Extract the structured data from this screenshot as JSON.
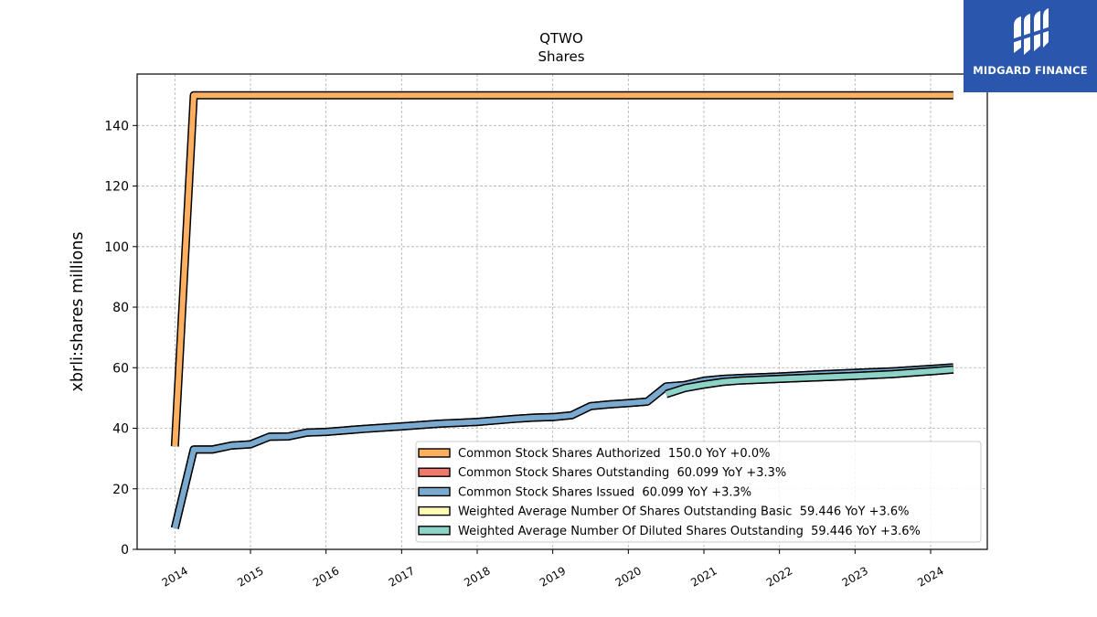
{
  "logo": {
    "brand": "MIDGARD FINANCE",
    "icon": "midgard-logo-icon",
    "bg": "#2a57ad"
  },
  "chart_data": {
    "type": "line",
    "title": "QTWO",
    "subtitle": "Shares",
    "ylabel": "xbrli:shares millions",
    "xlabel": "",
    "xlim": [
      2013.5,
      2024.75
    ],
    "ylim": [
      0,
      157
    ],
    "yticks": [
      0,
      20,
      40,
      60,
      80,
      100,
      120,
      140
    ],
    "xticks": [
      2014,
      2015,
      2016,
      2017,
      2018,
      2019,
      2020,
      2021,
      2022,
      2023,
      2024
    ],
    "grid": true,
    "legend_position": "lower-right",
    "series": [
      {
        "name": "Common Stock Shares Authorized",
        "legend_label": "Common Stock Shares Authorized  150.0 YoY +0.0%",
        "color": "#fcb060",
        "x": [
          2014.0,
          2014.25,
          2014.5,
          2015.0,
          2016.0,
          2017.0,
          2018.0,
          2019.0,
          2020.0,
          2021.0,
          2022.0,
          2023.0,
          2024.3
        ],
        "y": [
          34,
          150,
          150,
          150,
          150,
          150,
          150,
          150,
          150,
          150,
          150,
          150,
          150
        ]
      },
      {
        "name": "Common Stock Shares Outstanding",
        "legend_label": "Common Stock Shares Outstanding  60.099 YoY +3.3%",
        "color": "#f0786c",
        "x": [
          2014.0,
          2014.25,
          2014.5,
          2014.75,
          2015.0,
          2015.25,
          2015.5,
          2015.75,
          2016.0,
          2016.5,
          2017.0,
          2017.5,
          2018.0,
          2018.5,
          2018.75,
          2019.0,
          2019.25,
          2019.5,
          2019.75,
          2020.0,
          2020.25,
          2020.5,
          2020.75,
          2021.0,
          2021.25,
          2021.5,
          2022.0,
          2022.5,
          2023.0,
          2023.5,
          2024.0,
          2024.3
        ],
        "y": [
          7,
          33,
          33,
          34.3,
          34.7,
          37.2,
          37.3,
          38.6,
          38.8,
          39.8,
          40.6,
          41.5,
          42.1,
          43.1,
          43.5,
          43.7,
          44.3,
          47.3,
          47.9,
          48.3,
          48.8,
          53.8,
          54.3,
          55.7,
          56.3,
          56.6,
          57.1,
          57.8,
          58.3,
          58.8,
          59.6,
          60.1
        ]
      },
      {
        "name": "Common Stock Shares Issued",
        "legend_label": "Common Stock Shares Issued  60.099 YoY +3.3%",
        "color": "#7aaad0",
        "x": [
          2014.0,
          2014.25,
          2014.5,
          2014.75,
          2015.0,
          2015.25,
          2015.5,
          2015.75,
          2016.0,
          2016.5,
          2017.0,
          2017.5,
          2018.0,
          2018.5,
          2018.75,
          2019.0,
          2019.25,
          2019.5,
          2019.75,
          2020.0,
          2020.25,
          2020.5,
          2020.75,
          2021.0,
          2021.25,
          2021.5,
          2022.0,
          2022.5,
          2023.0,
          2023.5,
          2024.0,
          2024.3
        ],
        "y": [
          7,
          33,
          33,
          34.3,
          34.7,
          37.2,
          37.3,
          38.6,
          38.8,
          39.8,
          40.6,
          41.5,
          42.1,
          43.1,
          43.5,
          43.7,
          44.3,
          47.3,
          47.9,
          48.3,
          48.8,
          53.8,
          54.3,
          55.7,
          56.3,
          56.6,
          57.1,
          57.8,
          58.3,
          58.8,
          59.6,
          60.1
        ]
      },
      {
        "name": "Weighted Average Number Of Shares Outstanding Basic",
        "legend_label": "Weighted Average Number Of Shares Outstanding Basic  59.446 YoY +3.6%",
        "color": "#fffcb4",
        "x": [
          2020.5,
          2020.75,
          2021.0,
          2021.25,
          2021.5,
          2022.0,
          2022.5,
          2023.0,
          2023.5,
          2024.0,
          2024.3
        ],
        "y": [
          51.3,
          53.3,
          54.4,
          55.3,
          55.8,
          56.3,
          56.8,
          57.3,
          57.9,
          58.8,
          59.4
        ]
      },
      {
        "name": "Weighted Average Number Of Diluted Shares Outstanding",
        "legend_label": "Weighted Average Number Of Diluted Shares Outstanding  59.446 YoY +3.6%",
        "color": "#8dd3c7",
        "x": [
          2020.5,
          2020.75,
          2021.0,
          2021.25,
          2021.5,
          2022.0,
          2022.5,
          2023.0,
          2023.5,
          2024.0,
          2024.3
        ],
        "y": [
          51.3,
          53.3,
          54.4,
          55.3,
          55.8,
          56.3,
          56.8,
          57.3,
          57.9,
          58.8,
          59.4
        ]
      }
    ]
  }
}
